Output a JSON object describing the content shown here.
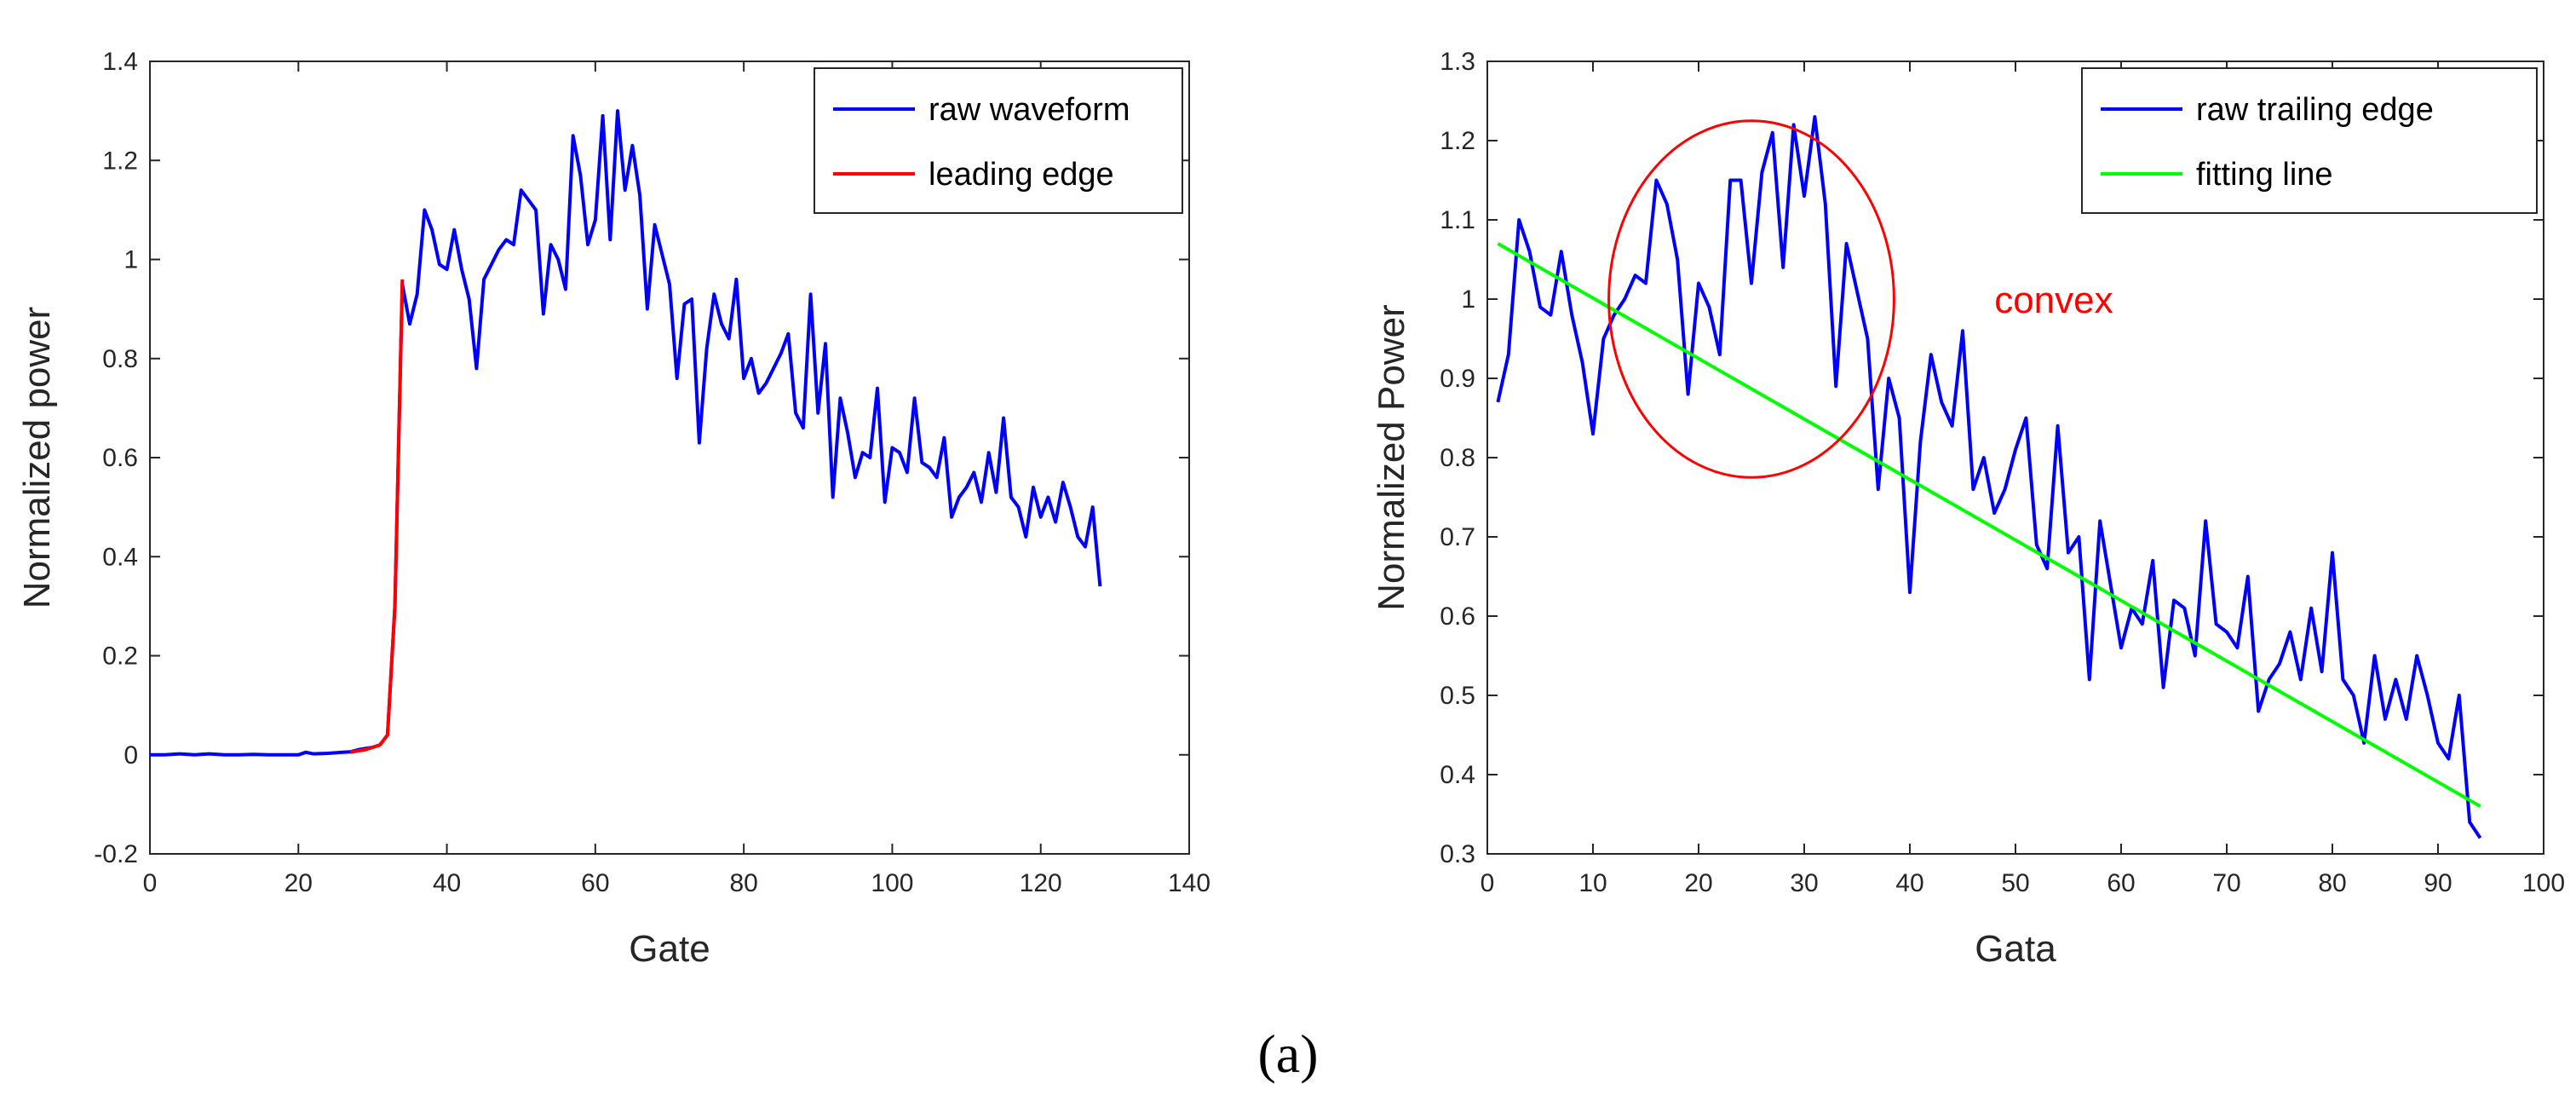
{
  "panel_label": "(a)",
  "colors": {
    "blue": "#0000ff",
    "red": "#ff0000",
    "green": "#00ff00",
    "axis": "#262626"
  },
  "chart_data": [
    {
      "type": "line",
      "title": "",
      "xlabel": "Gate",
      "ylabel": "Normalized power",
      "xlim": [
        0,
        140
      ],
      "ylim": [
        -0.2,
        1.4
      ],
      "xticks": [
        0,
        20,
        40,
        60,
        80,
        100,
        120,
        140
      ],
      "xtick_labels": [
        "0",
        "20",
        "40",
        "60",
        "80",
        "100",
        "120",
        "140"
      ],
      "yticks": [
        -0.2,
        0,
        0.2,
        0.4,
        0.6,
        0.8,
        1.0,
        1.2,
        1.4
      ],
      "ytick_labels": [
        "-0.2",
        "0",
        "0.2",
        "0.4",
        "0.6",
        "0.8",
        "1",
        "1.2",
        "1.4"
      ],
      "legend_position": "top-right",
      "series": [
        {
          "name": "raw waveform",
          "color": "#0000ff",
          "x": [
            0,
            2,
            4,
            6,
            8,
            10,
            12,
            14,
            16,
            18,
            20,
            21,
            22,
            24,
            26,
            27,
            28,
            30,
            31,
            32,
            33,
            34,
            35,
            36,
            37,
            38,
            39,
            40,
            41,
            42,
            43,
            44,
            45,
            46,
            47,
            48,
            49,
            50,
            51,
            52,
            53,
            54,
            55,
            56,
            57,
            58,
            59,
            60,
            61,
            62,
            63,
            64,
            65,
            66,
            67,
            68,
            69,
            70,
            71,
            72,
            73,
            74,
            75,
            76,
            77,
            78,
            79,
            80,
            81,
            82,
            83,
            84,
            85,
            86,
            87,
            88,
            89,
            90,
            91,
            92,
            93,
            94,
            95,
            96,
            97,
            98,
            99,
            100,
            101,
            102,
            103,
            104,
            105,
            106,
            107,
            108,
            109,
            110,
            111,
            112,
            113,
            114,
            115,
            116,
            117,
            118,
            119,
            120,
            121,
            122,
            123,
            124,
            125,
            126,
            127,
            128
          ],
          "y": [
            0.0,
            0.0,
            0.002,
            0.0,
            0.002,
            0.0,
            0.0,
            0.001,
            0.0,
            0.0,
            0.0,
            0.005,
            0.002,
            0.003,
            0.005,
            0.006,
            0.01,
            0.015,
            0.02,
            0.04,
            0.3,
            0.95,
            0.87,
            0.93,
            1.1,
            1.06,
            0.99,
            0.98,
            1.06,
            0.98,
            0.92,
            0.78,
            0.96,
            0.99,
            1.02,
            1.04,
            1.03,
            1.14,
            1.12,
            1.1,
            0.89,
            1.03,
            1.0,
            0.94,
            1.25,
            1.17,
            1.03,
            1.08,
            1.29,
            1.04,
            1.3,
            1.14,
            1.23,
            1.13,
            0.9,
            1.07,
            1.01,
            0.95,
            0.76,
            0.91,
            0.92,
            0.63,
            0.82,
            0.93,
            0.87,
            0.84,
            0.96,
            0.76,
            0.8,
            0.73,
            0.75,
            0.78,
            0.81,
            0.85,
            0.69,
            0.66,
            0.93,
            0.69,
            0.83,
            0.52,
            0.72,
            0.65,
            0.56,
            0.61,
            0.6,
            0.74,
            0.51,
            0.62,
            0.61,
            0.57,
            0.72,
            0.59,
            0.58,
            0.56,
            0.64,
            0.48,
            0.52,
            0.54,
            0.57,
            0.51,
            0.61,
            0.53,
            0.68,
            0.52,
            0.5,
            0.44,
            0.54,
            0.48,
            0.52,
            0.47,
            0.55,
            0.5,
            0.44,
            0.42,
            0.5,
            0.34
          ]
        },
        {
          "name": "leading edge",
          "color": "#ff0000",
          "x": [
            27,
            28,
            29,
            30,
            31,
            32,
            33,
            34
          ],
          "y": [
            0.005,
            0.008,
            0.01,
            0.015,
            0.02,
            0.04,
            0.3,
            0.96
          ]
        }
      ]
    },
    {
      "type": "line",
      "title": "",
      "xlabel": "Gata",
      "ylabel": "Normalized Power",
      "xlim": [
        0,
        100
      ],
      "ylim": [
        0.3,
        1.3
      ],
      "xticks": [
        0,
        10,
        20,
        30,
        40,
        50,
        60,
        70,
        80,
        90,
        100
      ],
      "xtick_labels": [
        "0",
        "10",
        "20",
        "30",
        "40",
        "50",
        "60",
        "70",
        "80",
        "90",
        "100"
      ],
      "yticks": [
        0.3,
        0.4,
        0.5,
        0.6,
        0.7,
        0.8,
        0.9,
        1.0,
        1.1,
        1.2,
        1.3
      ],
      "ytick_labels": [
        "0.3",
        "0.4",
        "0.5",
        "0.6",
        "0.7",
        "0.8",
        "0.9",
        "1",
        "1.1",
        "1.2",
        "1.3"
      ],
      "legend_position": "top-right",
      "series": [
        {
          "name": "raw trailing edge",
          "color": "#0000ff",
          "x": [
            1,
            2,
            3,
            4,
            5,
            6,
            7,
            8,
            9,
            10,
            11,
            12,
            13,
            14,
            15,
            16,
            17,
            18,
            19,
            20,
            21,
            22,
            23,
            24,
            25,
            26,
            27,
            28,
            29,
            30,
            31,
            32,
            33,
            34,
            35,
            36,
            37,
            38,
            39,
            40,
            41,
            42,
            43,
            44,
            45,
            46,
            47,
            48,
            49,
            50,
            51,
            52,
            53,
            54,
            55,
            56,
            57,
            58,
            59,
            60,
            61,
            62,
            63,
            64,
            65,
            66,
            67,
            68,
            69,
            70,
            71,
            72,
            73,
            74,
            75,
            76,
            77,
            78,
            79,
            80,
            81,
            82,
            83,
            84,
            85,
            86,
            87,
            88,
            89,
            90,
            91,
            92,
            93,
            94
          ],
          "y": [
            0.87,
            0.93,
            1.1,
            1.06,
            0.99,
            0.98,
            1.06,
            0.98,
            0.92,
            0.83,
            0.95,
            0.98,
            1.0,
            1.03,
            1.02,
            1.15,
            1.12,
            1.05,
            0.88,
            1.02,
            0.99,
            0.93,
            1.15,
            1.15,
            1.02,
            1.16,
            1.21,
            1.04,
            1.22,
            1.13,
            1.23,
            1.12,
            0.89,
            1.07,
            1.01,
            0.95,
            0.76,
            0.9,
            0.85,
            0.63,
            0.82,
            0.93,
            0.87,
            0.84,
            0.96,
            0.76,
            0.8,
            0.73,
            0.76,
            0.81,
            0.85,
            0.69,
            0.66,
            0.84,
            0.68,
            0.7,
            0.52,
            0.72,
            0.64,
            0.56,
            0.61,
            0.59,
            0.67,
            0.51,
            0.62,
            0.61,
            0.55,
            0.72,
            0.59,
            0.58,
            0.56,
            0.65,
            0.48,
            0.52,
            0.54,
            0.58,
            0.52,
            0.61,
            0.53,
            0.68,
            0.52,
            0.5,
            0.44,
            0.55,
            0.47,
            0.52,
            0.47,
            0.55,
            0.5,
            0.44,
            0.42,
            0.5,
            0.34,
            0.32
          ]
        },
        {
          "name": "fitting line",
          "color": "#00ff00",
          "x": [
            1,
            94
          ],
          "y": [
            1.07,
            0.36
          ]
        }
      ],
      "annotations": [
        {
          "type": "circle",
          "center_x": 25,
          "center_y": 1.0,
          "radius_x": 13.5,
          "radius_y": 0.225,
          "color": "#ff0000"
        },
        {
          "type": "text",
          "text": "convex",
          "x": 48,
          "y": 1.0,
          "color": "#ff0000"
        }
      ]
    }
  ]
}
